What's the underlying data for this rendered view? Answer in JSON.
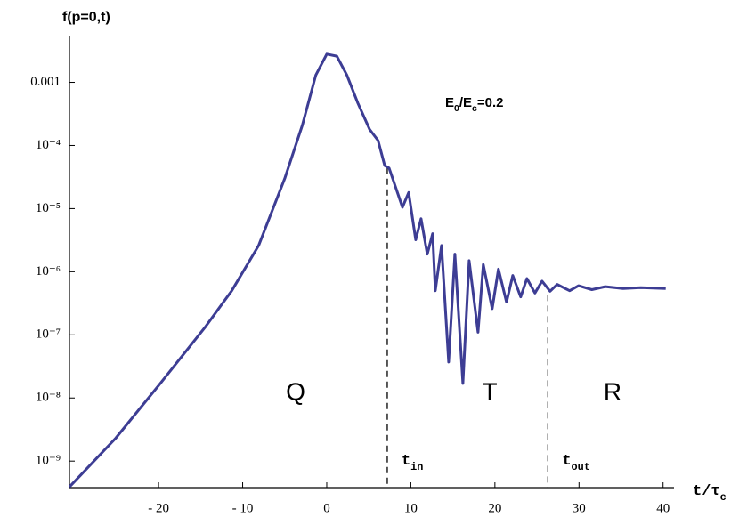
{
  "chart_data": {
    "type": "line",
    "title": "f(p=0,t)",
    "x_label": [
      "t/τ",
      "c"
    ],
    "log_y": true,
    "xlim": [
      -30.6,
      41.3
    ],
    "ylim": [
      3.8e-10,
      0.0055
    ],
    "xticks": [
      {
        "value": -20,
        "label": "- 20"
      },
      {
        "value": -10,
        "label": "- 10"
      },
      0,
      10,
      20,
      30,
      40
    ],
    "yticks": [
      {
        "value": 1e-09,
        "label": "10⁻⁹"
      },
      {
        "value": 1e-08,
        "label": "10⁻⁸"
      },
      {
        "value": 1e-07,
        "label": "10⁻⁷"
      },
      {
        "value": 1e-06,
        "label": "10⁻⁶"
      },
      {
        "value": 1e-05,
        "label": "10⁻⁵"
      },
      {
        "value": 0.0001,
        "label": "10⁻⁴"
      },
      {
        "value": 0.001,
        "label": "0.001"
      }
    ],
    "x": [
      -30.6,
      -25.1,
      -19.8,
      -14.5,
      -11.3,
      -8.1,
      -5.0,
      -2.9,
      -1.3,
      0,
      1.2,
      2.4,
      3.7,
      5.1,
      6.1,
      6.9,
      7.41,
      9.0,
      9.74,
      10.58,
      11.22,
      11.96,
      12.59,
      12.91,
      13.65,
      14.5,
      15.24,
      16.19,
      16.93,
      17.99,
      18.62,
      19.68,
      20.42,
      21.38,
      22.12,
      23.07,
      23.81,
      24.76,
      25.61,
      26.56,
      27.41,
      28.89,
      29.95,
      31.53,
      33.12,
      35.24,
      37.35,
      40.32
    ],
    "series": [
      {
        "name": "f",
        "color": "#3d3d94",
        "values": [
          3.9e-10,
          2.3e-09,
          1.7e-08,
          1.3e-07,
          5e-07,
          2.6e-06,
          3e-05,
          0.00021,
          0.0013,
          0.0028,
          0.0026,
          0.0013,
          0.00047,
          0.00018,
          0.00012,
          4.8e-05,
          4.4e-05,
          1.05e-05,
          1.8e-05,
          3.2e-06,
          6.9e-06,
          1.9e-06,
          4e-06,
          5e-07,
          2.6e-06,
          3.7e-08,
          1.9e-06,
          1.7e-08,
          1.5e-06,
          1.1e-07,
          1.3e-06,
          2.6e-07,
          1.1e-06,
          3.3e-07,
          8.7e-07,
          4e-07,
          7.8e-07,
          4.6e-07,
          7.1e-07,
          4.9e-07,
          6.3e-07,
          5e-07,
          6e-07,
          5.2e-07,
          5.8e-07,
          5.4e-07,
          5.6e-07,
          5.4e-07
        ]
      }
    ],
    "energy_label": [
      "E",
      "0",
      "/E",
      "c",
      "=0.2"
    ],
    "markers": [
      {
        "x": 7.2,
        "y": 4.4e-05,
        "label": [
          "t",
          "in"
        ]
      },
      {
        "x": 26.3,
        "y": 4.3e-07,
        "label": [
          "t",
          "out"
        ]
      }
    ],
    "regions": [
      "Q",
      "T",
      "R"
    ]
  }
}
